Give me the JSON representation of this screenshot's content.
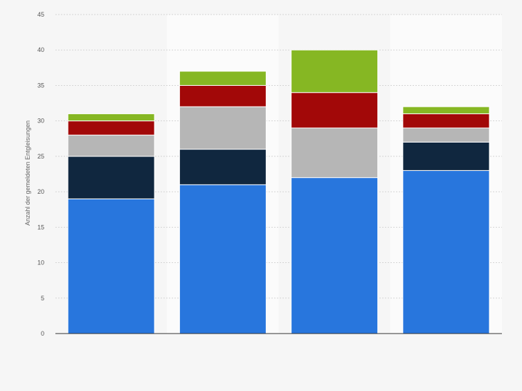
{
  "chart_data": {
    "type": "bar",
    "stacked": true,
    "ylabel": "Anzahl der gemeldeten Entgleisungen",
    "ylim": [
      0,
      45
    ],
    "yticks": [
      0,
      5,
      10,
      15,
      20,
      25,
      30,
      35,
      40,
      45
    ],
    "grid": true,
    "legend": "none",
    "categories": [
      "",
      "",
      "",
      ""
    ],
    "series": [
      {
        "color": "#2876dd",
        "values": [
          19,
          21,
          22,
          23
        ]
      },
      {
        "color": "#10273f",
        "values": [
          6,
          5,
          0,
          4
        ]
      },
      {
        "color": "#b6b6b6",
        "values": [
          3,
          6,
          7,
          2
        ]
      },
      {
        "color": "#a20808",
        "values": [
          2,
          3,
          5,
          2
        ]
      },
      {
        "color": "#86b723",
        "values": [
          1,
          2,
          6,
          1
        ]
      }
    ]
  }
}
